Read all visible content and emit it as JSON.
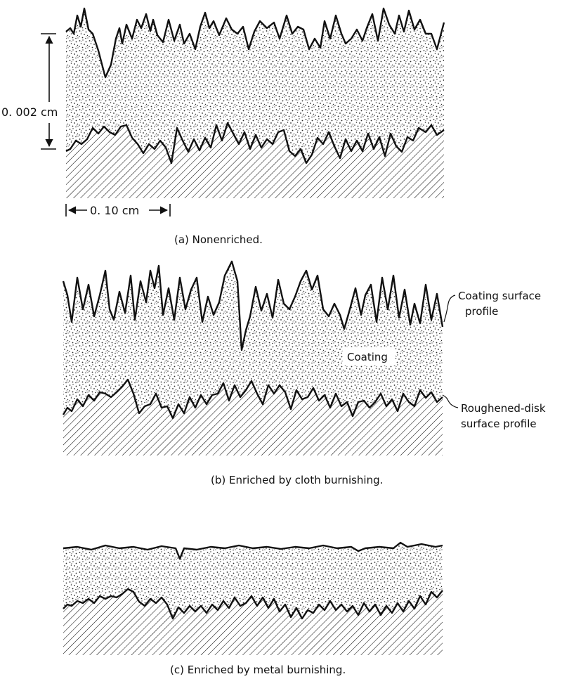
{
  "dimensions": {
    "vertical_label": "0. 002 cm",
    "horizontal_label": "0. 10 cm"
  },
  "panels": [
    {
      "id": "a",
      "caption": "(a) Nonenriched."
    },
    {
      "id": "b",
      "caption": "(b) Enriched by cloth burnishing.",
      "labels": {
        "coating": "Coating",
        "coating_profile_line1": "Coating surface",
        "coating_profile_line2": "profile",
        "disk_profile_line1": "Roughened-disk",
        "disk_profile_line2": "surface profile"
      }
    },
    {
      "id": "c",
      "caption": "(c) Enriched by metal burnishing."
    }
  ],
  "colors": {
    "ink": "#111111",
    "coating_stipple": "#2a2a2a",
    "background": "#ffffff"
  }
}
